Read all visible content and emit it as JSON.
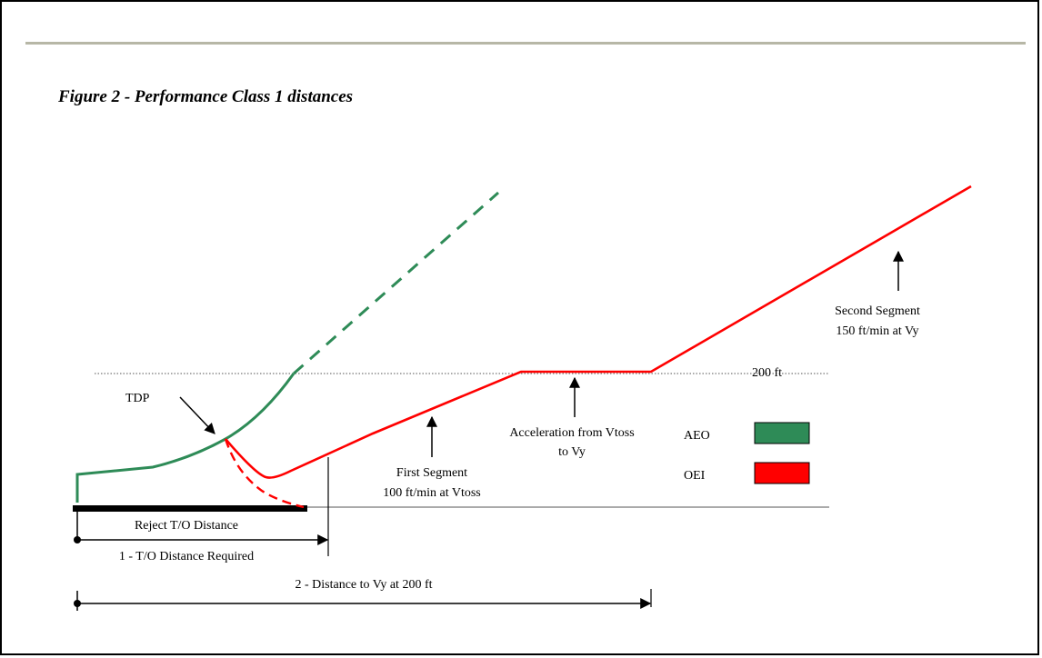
{
  "figure_title": "Figure 2 - Performance Class 1 distances",
  "colors": {
    "aeo": "#2e8b57",
    "oei": "#ff0000",
    "ink": "#000000"
  },
  "labels": {
    "tdp": "TDP",
    "height_200": "200 ft",
    "first_segment_line1": "First Segment",
    "first_segment_line2": "100 ft/min at Vtoss",
    "acceleration_line1": "Acceleration from Vtoss",
    "acceleration_line2": "to Vy",
    "second_segment_line1": "Second Segment",
    "second_segment_line2": "150 ft/min at Vy"
  },
  "legend": [
    {
      "name": "AEO",
      "color": "#2e8b57"
    },
    {
      "name": "OEI",
      "color": "#ff0000"
    }
  ],
  "distances": {
    "reject": "Reject T/O Distance",
    "todr": "1 - T/O Distance Required",
    "to_vy": "2 - Distance to Vy at 200 ft"
  }
}
